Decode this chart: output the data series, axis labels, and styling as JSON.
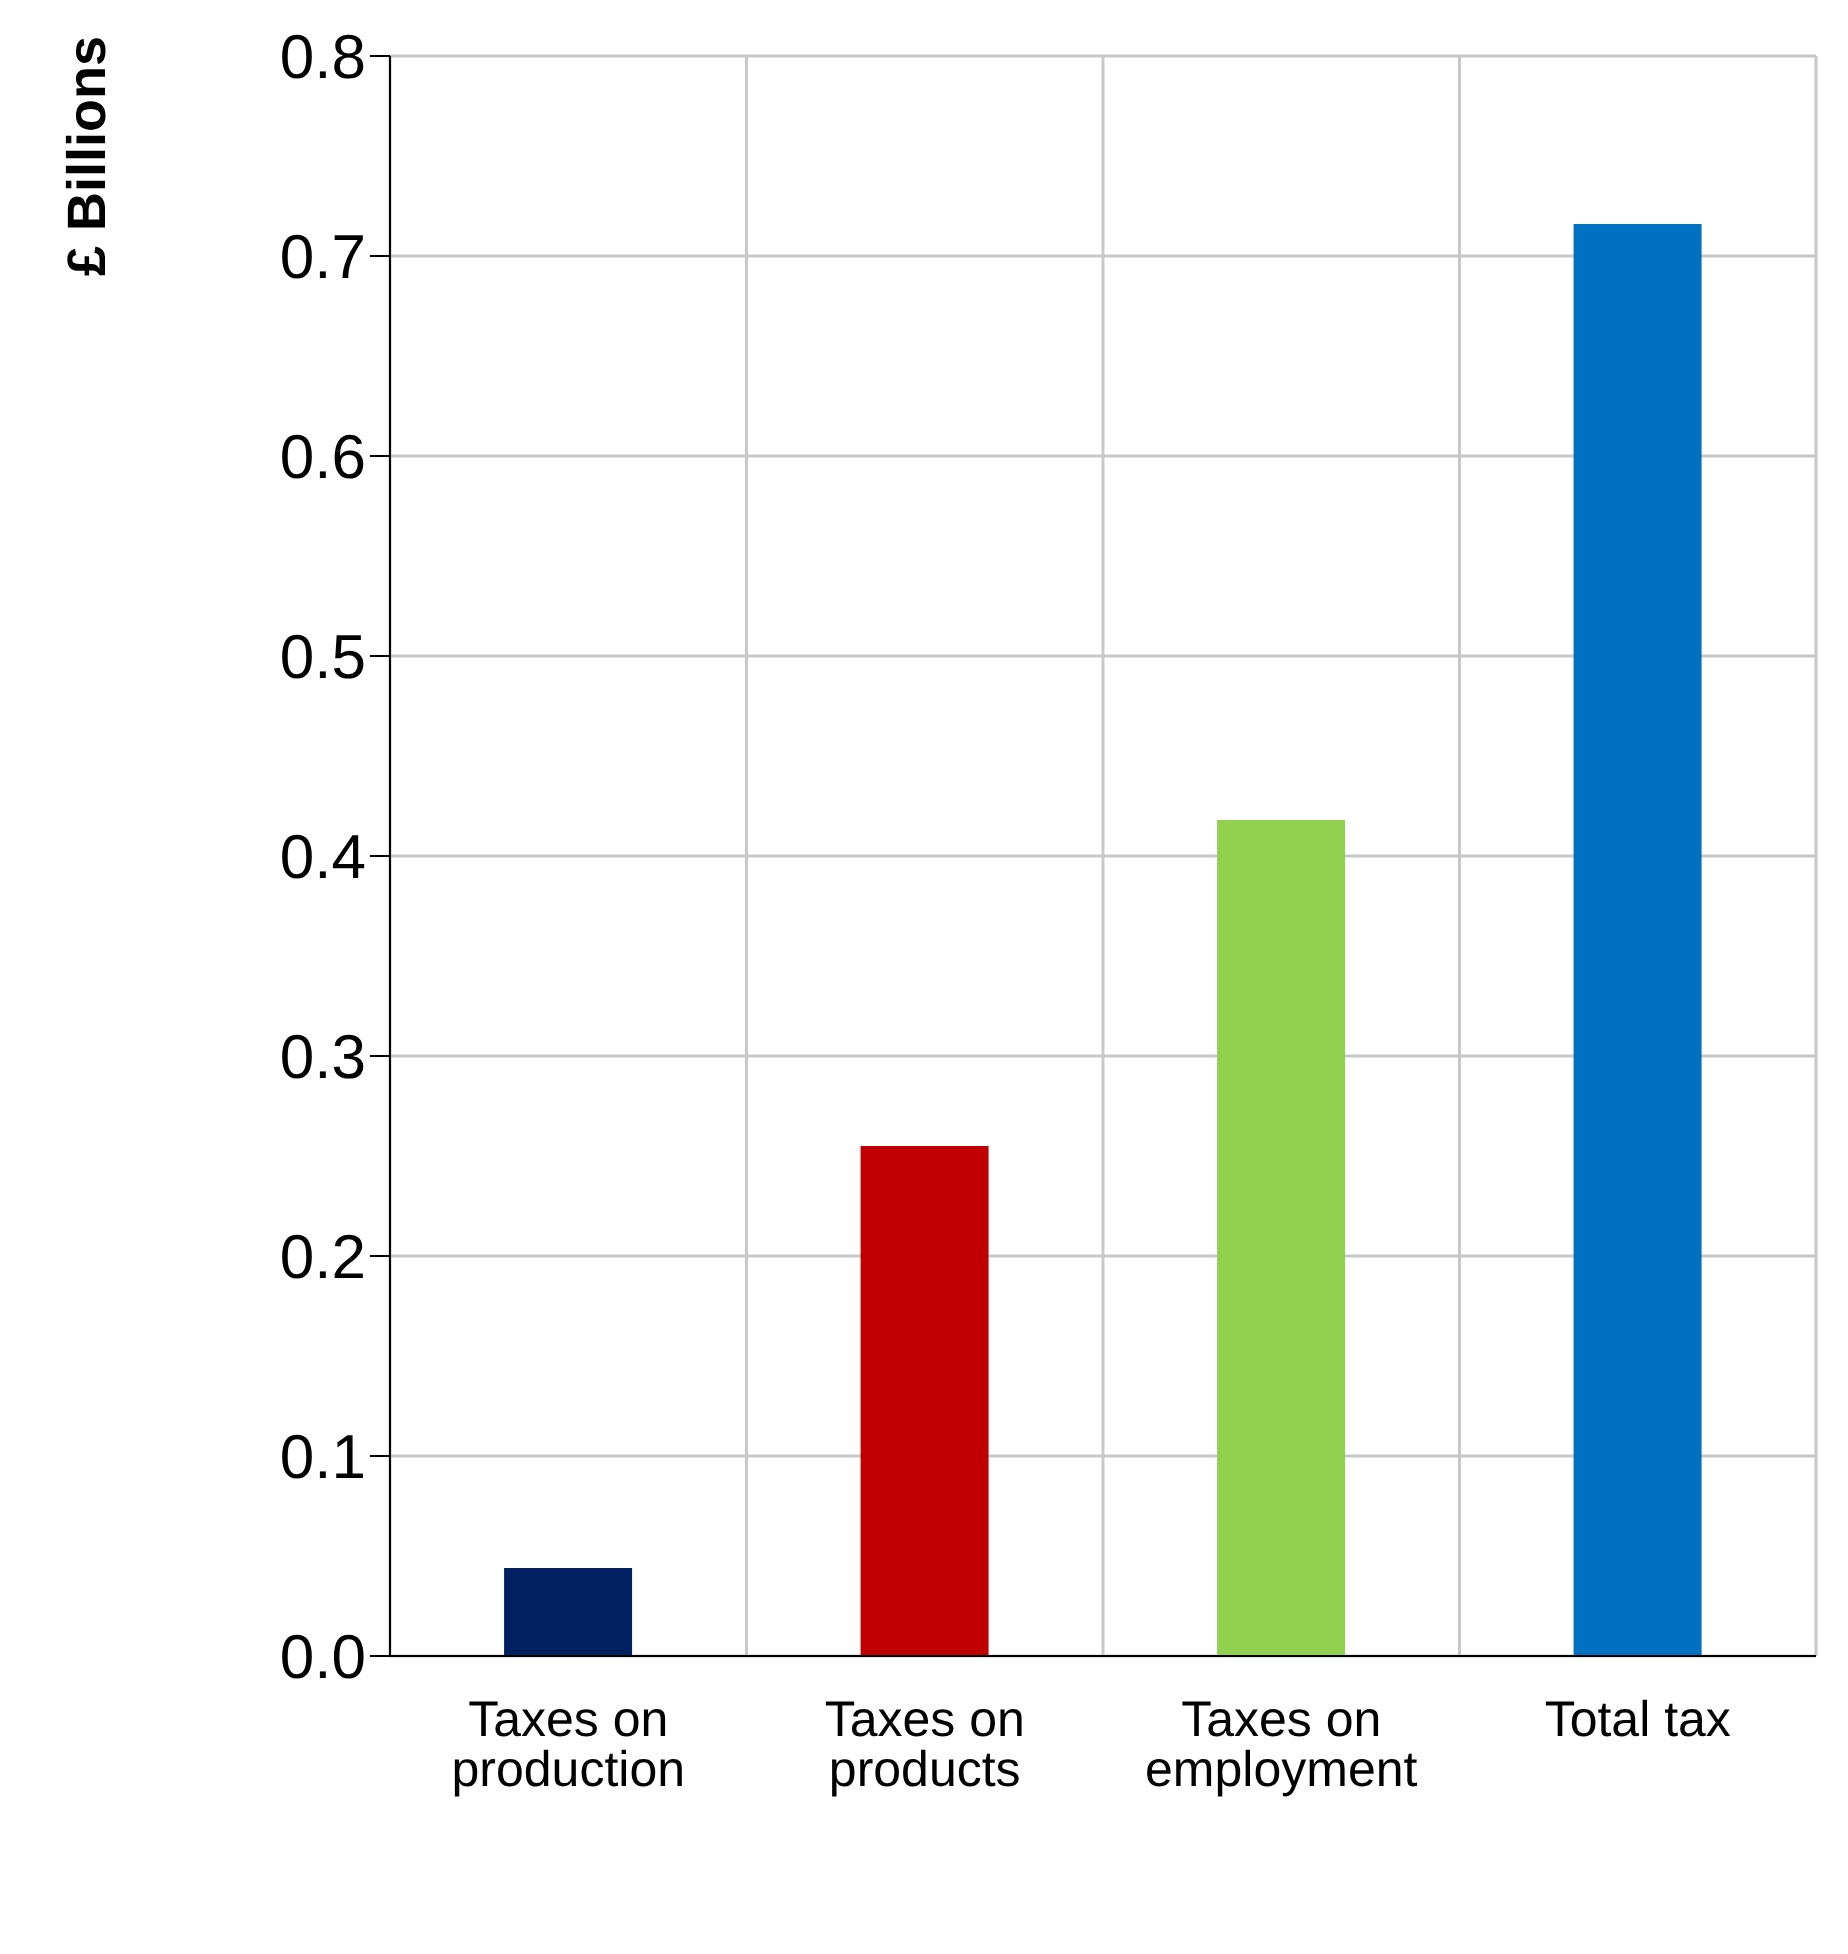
{
  "chart_data": {
    "type": "bar",
    "ylabel": "£ Billions",
    "categories": [
      "Taxes on production",
      "Taxes on products",
      "Taxes on employment",
      "Total tax"
    ],
    "values": [
      0.044,
      0.255,
      0.418,
      0.716
    ],
    "colors": [
      "#002060",
      "#c00000",
      "#92d050",
      "#0070c0"
    ],
    "ylim": [
      0,
      0.8
    ],
    "yticks": [
      {
        "value": 0,
        "label": "0.0"
      },
      0.1,
      0.2,
      0.3,
      0.4,
      0.5,
      0.6,
      0.7,
      0.8
    ],
    "grid": true
  }
}
